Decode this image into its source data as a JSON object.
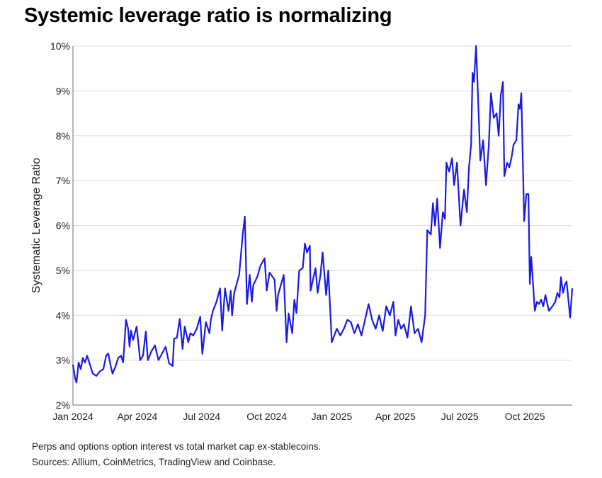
{
  "title": "Systemic leverage ratio is normalizing",
  "notes": [
    "Perps and options option interest vs total market cap ex-stablecoins.",
    "Sources: Allium, CoinMetrics, TradingView and Coinbase."
  ],
  "chart_data": {
    "type": "line",
    "title": "Systemic leverage ratio is normalizing",
    "xlabel": "",
    "ylabel": "Systematic Leverage Ratio",
    "ylim": [
      2,
      10
    ],
    "xlim": [
      "2024-01-01",
      "2025-12-07"
    ],
    "grid": true,
    "line_color": "#1a1ae6",
    "y_ticks": [
      "2%",
      "3%",
      "4%",
      "5%",
      "6%",
      "7%",
      "8%",
      "9%",
      "10%"
    ],
    "x_ticks": [
      {
        "label": "Jan 2024",
        "date": "2024-01-01"
      },
      {
        "label": "Apr 2024",
        "date": "2024-04-01"
      },
      {
        "label": "Jul 2024",
        "date": "2024-07-01"
      },
      {
        "label": "Oct 2024",
        "date": "2024-10-01"
      },
      {
        "label": "Jan 2025",
        "date": "2025-01-01"
      },
      {
        "label": "Apr 2025",
        "date": "2025-04-01"
      },
      {
        "label": "Jul 2025",
        "date": "2025-07-01"
      },
      {
        "label": "Oct 2025",
        "date": "2025-10-01"
      }
    ],
    "series": [
      {
        "points": [
          [
            "2024-01-01",
            2.9
          ],
          [
            "2024-01-04",
            2.6
          ],
          [
            "2024-01-06",
            2.5
          ],
          [
            "2024-01-09",
            2.95
          ],
          [
            "2024-01-12",
            2.8
          ],
          [
            "2024-01-15",
            3.05
          ],
          [
            "2024-01-18",
            2.95
          ],
          [
            "2024-01-21",
            3.1
          ],
          [
            "2024-01-25",
            2.9
          ],
          [
            "2024-01-29",
            2.7
          ],
          [
            "2024-02-03",
            2.65
          ],
          [
            "2024-02-08",
            2.75
          ],
          [
            "2024-02-13",
            2.8
          ],
          [
            "2024-02-17",
            3.1
          ],
          [
            "2024-02-20",
            3.15
          ],
          [
            "2024-02-23",
            2.9
          ],
          [
            "2024-02-26",
            2.7
          ],
          [
            "2024-03-01",
            2.85
          ],
          [
            "2024-03-05",
            3.05
          ],
          [
            "2024-03-09",
            3.1
          ],
          [
            "2024-03-12",
            2.95
          ],
          [
            "2024-03-16",
            3.9
          ],
          [
            "2024-03-19",
            3.7
          ],
          [
            "2024-03-21",
            3.3
          ],
          [
            "2024-03-23",
            3.66
          ],
          [
            "2024-03-26",
            3.45
          ],
          [
            "2024-03-31",
            3.75
          ],
          [
            "2024-04-05",
            3.0
          ],
          [
            "2024-04-09",
            3.1
          ],
          [
            "2024-04-13",
            3.64
          ],
          [
            "2024-04-16",
            3.0
          ],
          [
            "2024-04-21",
            3.2
          ],
          [
            "2024-04-26",
            3.33
          ],
          [
            "2024-05-01",
            3.0
          ],
          [
            "2024-05-06",
            3.15
          ],
          [
            "2024-05-11",
            3.3
          ],
          [
            "2024-05-16",
            2.93
          ],
          [
            "2024-05-21",
            2.87
          ],
          [
            "2024-05-23",
            3.48
          ],
          [
            "2024-05-27",
            3.5
          ],
          [
            "2024-05-31",
            3.92
          ],
          [
            "2024-06-04",
            3.25
          ],
          [
            "2024-06-07",
            3.75
          ],
          [
            "2024-06-12",
            3.4
          ],
          [
            "2024-06-15",
            3.6
          ],
          [
            "2024-06-19",
            3.55
          ],
          [
            "2024-06-24",
            3.7
          ],
          [
            "2024-06-29",
            3.97
          ],
          [
            "2024-07-02",
            3.14
          ],
          [
            "2024-07-07",
            3.85
          ],
          [
            "2024-07-12",
            3.6
          ],
          [
            "2024-07-14",
            3.9
          ],
          [
            "2024-07-17",
            4.1
          ],
          [
            "2024-07-22",
            4.3
          ],
          [
            "2024-07-27",
            4.6
          ],
          [
            "2024-07-30",
            3.66
          ],
          [
            "2024-08-03",
            4.6
          ],
          [
            "2024-08-08",
            4.1
          ],
          [
            "2024-08-11",
            4.55
          ],
          [
            "2024-08-13",
            4.0
          ],
          [
            "2024-08-16",
            4.5
          ],
          [
            "2024-08-23",
            4.9
          ],
          [
            "2024-08-28",
            5.8
          ],
          [
            "2024-08-31",
            6.2
          ],
          [
            "2024-09-03",
            4.25
          ],
          [
            "2024-09-07",
            4.9
          ],
          [
            "2024-09-10",
            4.3
          ],
          [
            "2024-09-12",
            4.67
          ],
          [
            "2024-09-18",
            4.87
          ],
          [
            "2024-09-22",
            5.1
          ],
          [
            "2024-09-28",
            5.27
          ],
          [
            "2024-10-01",
            4.55
          ],
          [
            "2024-10-05",
            4.95
          ],
          [
            "2024-10-12",
            4.8
          ],
          [
            "2024-10-15",
            4.1
          ],
          [
            "2024-10-17",
            4.45
          ],
          [
            "2024-10-25",
            4.9
          ],
          [
            "2024-10-29",
            3.4
          ],
          [
            "2024-11-01",
            4.04
          ],
          [
            "2024-11-06",
            3.6
          ],
          [
            "2024-11-09",
            4.35
          ],
          [
            "2024-11-12",
            4.05
          ],
          [
            "2024-11-16",
            5.0
          ],
          [
            "2024-11-21",
            5.05
          ],
          [
            "2024-11-24",
            5.6
          ],
          [
            "2024-11-27",
            5.4
          ],
          [
            "2024-12-01",
            5.55
          ],
          [
            "2024-12-02",
            4.55
          ],
          [
            "2024-12-09",
            5.05
          ],
          [
            "2024-12-12",
            4.5
          ],
          [
            "2024-12-16",
            4.9
          ],
          [
            "2024-12-19",
            5.4
          ],
          [
            "2024-12-24",
            4.45
          ],
          [
            "2024-12-27",
            5.0
          ],
          [
            "2025-01-01",
            3.4
          ],
          [
            "2025-01-08",
            3.7
          ],
          [
            "2025-01-13",
            3.55
          ],
          [
            "2025-01-18",
            3.7
          ],
          [
            "2025-01-23",
            3.9
          ],
          [
            "2025-01-28",
            3.85
          ],
          [
            "2025-02-02",
            3.6
          ],
          [
            "2025-02-07",
            3.8
          ],
          [
            "2025-02-12",
            3.55
          ],
          [
            "2025-02-17",
            3.9
          ],
          [
            "2025-02-22",
            4.25
          ],
          [
            "2025-02-27",
            3.9
          ],
          [
            "2025-03-04",
            3.7
          ],
          [
            "2025-03-09",
            4.0
          ],
          [
            "2025-03-14",
            3.65
          ],
          [
            "2025-03-19",
            4.2
          ],
          [
            "2025-03-24",
            4.0
          ],
          [
            "2025-03-29",
            4.3
          ],
          [
            "2025-04-01",
            3.55
          ],
          [
            "2025-04-05",
            3.9
          ],
          [
            "2025-04-09",
            3.7
          ],
          [
            "2025-04-13",
            3.8
          ],
          [
            "2025-04-18",
            3.5
          ],
          [
            "2025-04-23",
            4.2
          ],
          [
            "2025-04-28",
            3.6
          ],
          [
            "2025-05-03",
            3.7
          ],
          [
            "2025-05-08",
            3.4
          ],
          [
            "2025-05-13",
            4.0
          ],
          [
            "2025-05-16",
            5.9
          ],
          [
            "2025-05-21",
            5.8
          ],
          [
            "2025-05-24",
            6.5
          ],
          [
            "2025-05-27",
            6.0
          ],
          [
            "2025-05-30",
            6.6
          ],
          [
            "2025-06-03",
            5.5
          ],
          [
            "2025-06-07",
            6.3
          ],
          [
            "2025-06-10",
            6.15
          ],
          [
            "2025-06-12",
            7.4
          ],
          [
            "2025-06-16",
            7.2
          ],
          [
            "2025-06-20",
            7.5
          ],
          [
            "2025-06-23",
            6.9
          ],
          [
            "2025-06-27",
            7.4
          ],
          [
            "2025-07-02",
            6.0
          ],
          [
            "2025-07-07",
            6.8
          ],
          [
            "2025-07-11",
            6.3
          ],
          [
            "2025-07-14",
            7.3
          ],
          [
            "2025-07-17",
            7.8
          ],
          [
            "2025-07-19",
            9.4
          ],
          [
            "2025-07-21",
            9.2
          ],
          [
            "2025-07-24",
            10.0
          ],
          [
            "2025-07-26",
            9.2
          ],
          [
            "2025-07-30",
            7.45
          ],
          [
            "2025-08-03",
            7.9
          ],
          [
            "2025-08-07",
            6.9
          ],
          [
            "2025-08-11",
            7.8
          ],
          [
            "2025-08-14",
            8.95
          ],
          [
            "2025-08-18",
            8.4
          ],
          [
            "2025-08-22",
            8.5
          ],
          [
            "2025-08-25",
            8.0
          ],
          [
            "2025-08-28",
            8.9
          ],
          [
            "2025-08-31",
            9.2
          ],
          [
            "2025-09-02",
            7.1
          ],
          [
            "2025-09-06",
            7.4
          ],
          [
            "2025-09-09",
            7.3
          ],
          [
            "2025-09-12",
            7.5
          ],
          [
            "2025-09-15",
            7.8
          ],
          [
            "2025-09-19",
            7.9
          ],
          [
            "2025-09-22",
            8.7
          ],
          [
            "2025-09-24",
            8.6
          ],
          [
            "2025-09-26",
            8.95
          ],
          [
            "2025-09-30",
            6.1
          ],
          [
            "2025-10-03",
            6.7
          ],
          [
            "2025-10-06",
            6.7
          ],
          [
            "2025-10-08",
            4.7
          ],
          [
            "2025-10-10",
            5.3
          ],
          [
            "2025-10-15",
            4.1
          ],
          [
            "2025-10-18",
            4.3
          ],
          [
            "2025-10-21",
            4.25
          ],
          [
            "2025-10-24",
            4.35
          ],
          [
            "2025-10-27",
            4.2
          ],
          [
            "2025-10-30",
            4.45
          ],
          [
            "2025-11-04",
            4.1
          ],
          [
            "2025-11-09",
            4.2
          ],
          [
            "2025-11-13",
            4.3
          ],
          [
            "2025-11-16",
            4.5
          ],
          [
            "2025-11-19",
            4.4
          ],
          [
            "2025-11-21",
            4.85
          ],
          [
            "2025-11-24",
            4.5
          ],
          [
            "2025-11-27",
            4.7
          ],
          [
            "2025-11-29",
            4.75
          ],
          [
            "2025-12-04",
            3.95
          ],
          [
            "2025-12-07",
            4.6
          ]
        ]
      }
    ]
  }
}
